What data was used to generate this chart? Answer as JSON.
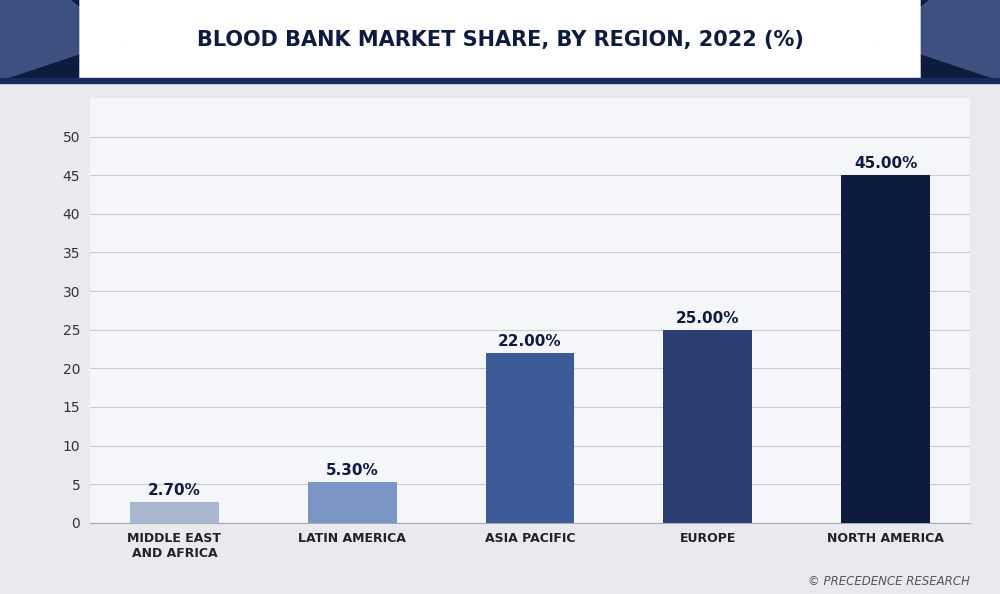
{
  "title": "BLOOD BANK MARKET SHARE, BY REGION, 2022 (%)",
  "categories": [
    "MIDDLE EAST\nAND AFRICA",
    "LATIN AMERICA",
    "ASIA PACIFIC",
    "EUROPE",
    "NORTH AMERICA"
  ],
  "values": [
    2.7,
    5.3,
    22.0,
    25.0,
    45.0
  ],
  "labels": [
    "2.70%",
    "5.30%",
    "22.00%",
    "25.00%",
    "45.00%"
  ],
  "bar_colors": [
    "#a8b8d0",
    "#7b96c4",
    "#3d5a99",
    "#2d3f72",
    "#0d1b3e"
  ],
  "background_color": "#e8eaf0",
  "plot_bg_color": "#f5f6fa",
  "title_color": "#0d1b3e",
  "ylim": [
    0,
    55
  ],
  "yticks": [
    0,
    5,
    10,
    15,
    20,
    25,
    30,
    35,
    40,
    45,
    50
  ],
  "grid_color": "#cccccc",
  "label_fontsize": 11,
  "tick_fontsize": 10,
  "title_fontsize": 15,
  "xlabel_fontsize": 9,
  "watermark": "© PRECEDENCE RESEARCH",
  "header_accent_color": "#0d1b3e",
  "header_mid_color": "#3d5080",
  "header_bg_color": "#ffffff",
  "header_border_color": "#1a2a5e"
}
